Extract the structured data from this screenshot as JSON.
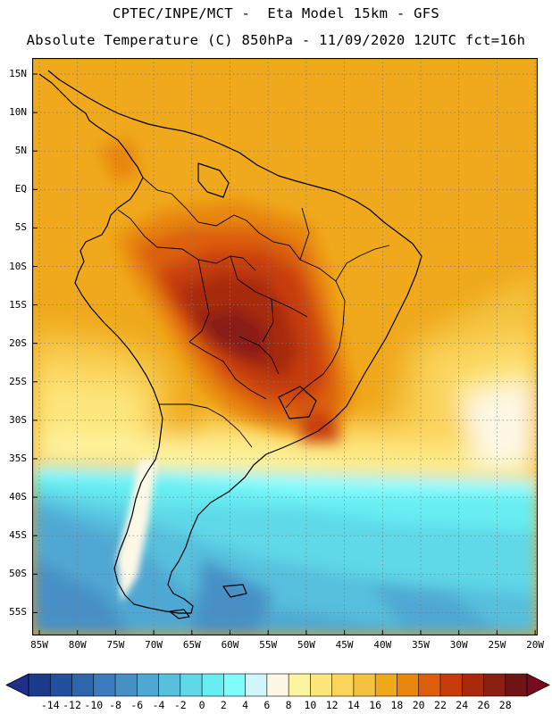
{
  "header": {
    "line1": "CPTEC/INPE/MCT -  Eta Model 15km - GFS",
    "line2": "Absolute Temperature (C) 850hPa - 11/09/2020 12UTC fct=16h"
  },
  "map": {
    "region": "South America",
    "lat_labels": [
      "15N",
      "10N",
      "5N",
      "EQ",
      "5S",
      "10S",
      "15S",
      "20S",
      "25S",
      "30S",
      "35S",
      "40S",
      "45S",
      "50S",
      "55S"
    ],
    "lon_labels": [
      "85W",
      "80W",
      "75W",
      "70W",
      "65W",
      "60W",
      "55W",
      "50W",
      "45W",
      "40W",
      "35W",
      "30W",
      "25W",
      "20W"
    ],
    "colors": {
      "frame": "#000000",
      "grid": "#7a7a7a",
      "coast": "#000000"
    }
  },
  "colorbar": {
    "labels": [
      "-14",
      "-12",
      "-10",
      "-8",
      "-6",
      "-4",
      "-2",
      "0",
      "2",
      "4",
      "6",
      "8",
      "10",
      "12",
      "14",
      "16",
      "18",
      "20",
      "22",
      "24",
      "26",
      "28"
    ],
    "under_color": "#1f2f8a",
    "over_color": "#7a0a1e",
    "colors": [
      "#1a3a8c",
      "#23509e",
      "#2e66ae",
      "#3a7cbd",
      "#4690c6",
      "#4fa8d3",
      "#57c0dd",
      "#5fd8e8",
      "#66eef2",
      "#7ffcfc",
      "#d0f6fc",
      "#fdf8e6",
      "#fdf4a0",
      "#fde67a",
      "#fbd45c",
      "#f4c23e",
      "#f0a81c",
      "#e8860e",
      "#dc5e0c",
      "#c83c0c",
      "#a82a0a",
      "#8a1f14",
      "#6e1414"
    ]
  }
}
